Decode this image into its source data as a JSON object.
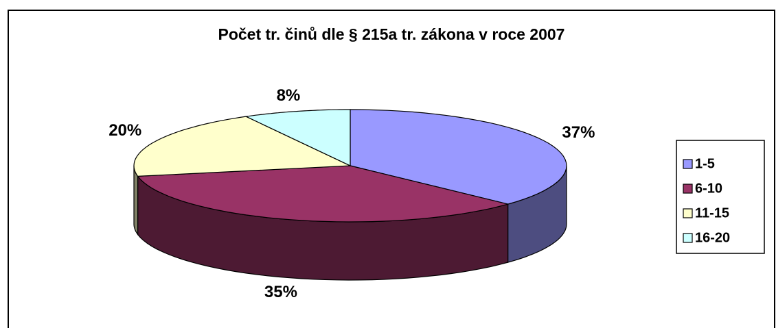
{
  "chart_data": {
    "type": "pie3d",
    "title": "Počet tr. činů dle § 215a tr. zákona v roce 2007",
    "categories": [
      "1-5",
      "6-10",
      "11-15",
      "16-20"
    ],
    "values": [
      37,
      35,
      20,
      8
    ],
    "value_labels": [
      "37%",
      "35%",
      "20%",
      "8%"
    ],
    "colors": [
      "#9999ff",
      "#993366",
      "#ffffcc",
      "#ccffff"
    ],
    "legend": "right"
  }
}
